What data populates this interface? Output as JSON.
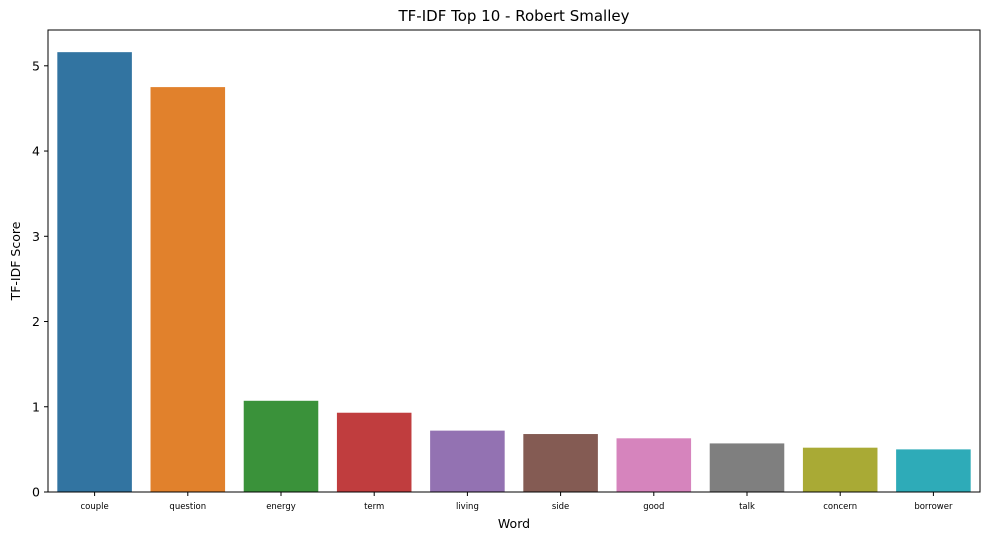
{
  "chart_data": {
    "type": "bar",
    "title": "TF-IDF Top 10 - Robert Smalley",
    "xlabel": "Word",
    "ylabel": "TF-IDF Score",
    "categories": [
      "couple",
      "question",
      "energy",
      "term",
      "living",
      "side",
      "good",
      "talk",
      "concern",
      "borrower"
    ],
    "values": [
      5.16,
      4.75,
      1.07,
      0.93,
      0.72,
      0.68,
      0.63,
      0.57,
      0.52,
      0.5
    ],
    "colors": [
      "#3274a1",
      "#e1812c",
      "#3a923a",
      "#c03d3e",
      "#9372b2",
      "#845b53",
      "#d684bd",
      "#7f7f7f",
      "#a9aa35",
      "#2eabb8"
    ],
    "ylim": [
      0,
      5.42
    ],
    "yticks": [
      "0",
      "1",
      "2",
      "3",
      "4",
      "5"
    ],
    "grid": false,
    "legend": "none"
  }
}
